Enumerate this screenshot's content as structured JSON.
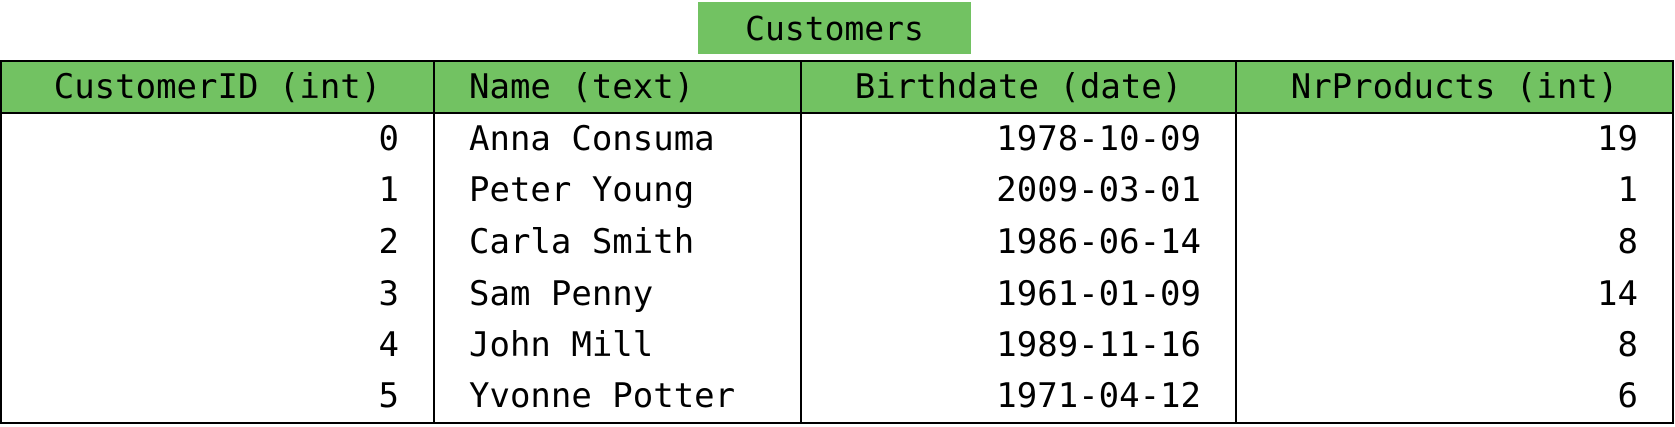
{
  "table": {
    "title": "Customers",
    "headers": [
      "CustomerID (int)",
      "Name (text)",
      "Birthdate (date)",
      "NrProducts (int)"
    ],
    "rows": [
      [
        "0",
        "Anna Consuma",
        "1978-10-09",
        "19"
      ],
      [
        "1",
        "Peter Young",
        "2009-03-01",
        "1"
      ],
      [
        "2",
        "Carla Smith",
        "1986-06-14",
        "8"
      ],
      [
        "3",
        "Sam Penny",
        "1961-01-09",
        "14"
      ],
      [
        "4",
        "John Mill",
        "1989-11-16",
        "8"
      ],
      [
        "5",
        "Yvonne Potter",
        "1971-04-12",
        "6"
      ]
    ]
  },
  "colors": {
    "header_background": "#72c262",
    "border": "#000000"
  }
}
